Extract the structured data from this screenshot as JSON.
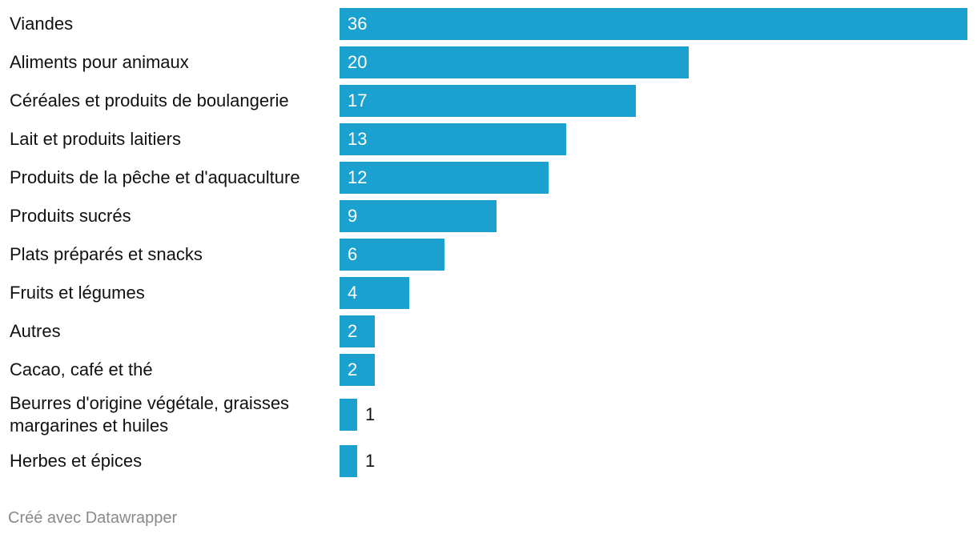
{
  "chart_data": {
    "type": "bar",
    "orientation": "horizontal",
    "categories": [
      "Viandes",
      "Aliments pour animaux",
      "Céréales et produits de boulangerie",
      "Lait et produits laitiers",
      "Produits de la pêche et d'aquaculture",
      "Produits sucrés",
      "Plats préparés et snacks",
      "Fruits et légumes",
      "Autres",
      "Cacao, café et thé",
      "Beurres d'origine végétale, graisses margarines et huiles",
      "Herbes et épices"
    ],
    "values": [
      36,
      20,
      17,
      13,
      12,
      9,
      6,
      4,
      2,
      2,
      1,
      1
    ],
    "bar_color": "#1aa1d0",
    "xlim": [
      0,
      36
    ],
    "grid": false,
    "title": "",
    "xlabel": "",
    "ylabel": ""
  },
  "footer": {
    "credit": "Créé avec Datawrapper"
  }
}
